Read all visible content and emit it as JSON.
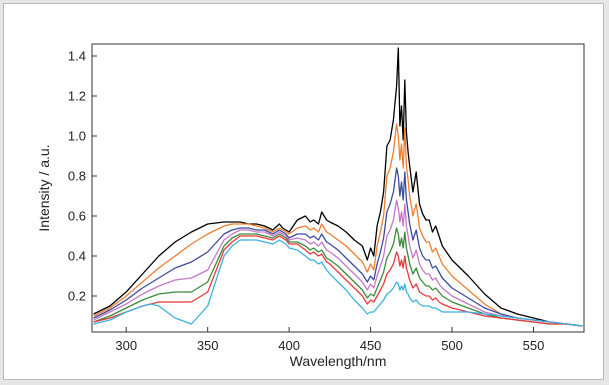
{
  "chart_data": {
    "type": "line",
    "title": "",
    "xlabel": "Wavelength/nm",
    "ylabel": "Intensity / a.u.",
    "xlim": [
      279,
      581
    ],
    "ylim": [
      0.02,
      1.46
    ],
    "xticks": [
      300,
      350,
      400,
      450,
      500,
      550
    ],
    "yticks": [
      0.2,
      0.4,
      0.6,
      0.8,
      1.0,
      1.2,
      1.4
    ],
    "ytick_labels": [
      "0.2",
      "0.4",
      "0.6",
      "0.8",
      "1.0",
      "1.2",
      "1.4"
    ],
    "legend": "none",
    "grid": false,
    "series": [
      {
        "color": "#000000",
        "x": [
          280,
          290,
          300,
          310,
          320,
          330,
          340,
          350,
          360,
          365,
          370,
          375,
          380,
          385,
          390,
          394,
          396,
          398,
          400,
          405,
          410,
          413,
          415,
          418,
          420,
          423,
          425,
          430,
          435,
          440,
          445,
          448,
          450,
          452,
          454,
          456,
          458,
          460,
          462,
          464,
          466,
          467,
          468,
          469,
          470,
          471,
          472,
          473,
          474,
          476,
          478,
          480,
          482,
          484,
          486,
          488,
          490,
          492,
          494,
          500,
          510,
          520,
          530,
          540,
          550,
          560,
          570,
          580
        ],
        "y": [
          0.11,
          0.15,
          0.22,
          0.31,
          0.4,
          0.47,
          0.52,
          0.56,
          0.57,
          0.57,
          0.57,
          0.56,
          0.56,
          0.55,
          0.53,
          0.56,
          0.54,
          0.53,
          0.52,
          0.58,
          0.6,
          0.57,
          0.58,
          0.56,
          0.62,
          0.58,
          0.57,
          0.55,
          0.52,
          0.48,
          0.45,
          0.38,
          0.44,
          0.4,
          0.55,
          0.62,
          0.72,
          0.95,
          0.98,
          1.08,
          1.25,
          1.44,
          1.05,
          1.15,
          0.98,
          1.28,
          1.02,
          0.92,
          0.85,
          0.72,
          0.82,
          0.66,
          0.61,
          0.58,
          0.58,
          0.52,
          0.55,
          0.5,
          0.45,
          0.38,
          0.3,
          0.21,
          0.14,
          0.11,
          0.09,
          0.07,
          0.06,
          0.05
        ]
      },
      {
        "color": "#f07d2e",
        "x": [
          280,
          290,
          300,
          310,
          320,
          330,
          340,
          350,
          360,
          365,
          370,
          375,
          380,
          385,
          390,
          394,
          396,
          398,
          400,
          405,
          410,
          413,
          415,
          418,
          420,
          423,
          425,
          430,
          435,
          440,
          445,
          448,
          450,
          452,
          454,
          456,
          458,
          460,
          462,
          464,
          466,
          467,
          468,
          469,
          470,
          471,
          472,
          473,
          474,
          476,
          478,
          480,
          482,
          484,
          486,
          488,
          490,
          492,
          494,
          500,
          510,
          520,
          530,
          540,
          550,
          560,
          570,
          580
        ],
        "y": [
          0.1,
          0.14,
          0.2,
          0.27,
          0.34,
          0.4,
          0.46,
          0.51,
          0.55,
          0.56,
          0.56,
          0.56,
          0.55,
          0.54,
          0.52,
          0.54,
          0.53,
          0.52,
          0.51,
          0.54,
          0.55,
          0.53,
          0.54,
          0.52,
          0.56,
          0.52,
          0.51,
          0.48,
          0.45,
          0.41,
          0.37,
          0.32,
          0.36,
          0.33,
          0.45,
          0.52,
          0.6,
          0.8,
          0.84,
          0.92,
          1.06,
          1.0,
          0.88,
          0.96,
          0.84,
          1.04,
          0.85,
          0.78,
          0.7,
          0.6,
          0.66,
          0.54,
          0.5,
          0.47,
          0.47,
          0.42,
          0.44,
          0.4,
          0.36,
          0.3,
          0.23,
          0.16,
          0.11,
          0.09,
          0.08,
          0.07,
          0.06,
          0.05
        ]
      },
      {
        "color": "#3c4b9e",
        "x": [
          280,
          290,
          300,
          310,
          320,
          330,
          340,
          350,
          360,
          365,
          370,
          375,
          380,
          385,
          390,
          394,
          396,
          398,
          400,
          405,
          410,
          413,
          415,
          418,
          420,
          423,
          425,
          430,
          435,
          440,
          445,
          448,
          450,
          452,
          454,
          456,
          458,
          460,
          462,
          464,
          466,
          467,
          468,
          469,
          470,
          471,
          472,
          473,
          474,
          476,
          478,
          480,
          482,
          484,
          486,
          488,
          490,
          492,
          494,
          500,
          510,
          520,
          530,
          540,
          550,
          560,
          570,
          580
        ],
        "y": [
          0.09,
          0.13,
          0.18,
          0.24,
          0.29,
          0.34,
          0.37,
          0.42,
          0.51,
          0.53,
          0.54,
          0.54,
          0.53,
          0.53,
          0.51,
          0.53,
          0.52,
          0.51,
          0.49,
          0.51,
          0.51,
          0.49,
          0.5,
          0.48,
          0.51,
          0.47,
          0.46,
          0.43,
          0.39,
          0.35,
          0.31,
          0.27,
          0.3,
          0.28,
          0.36,
          0.42,
          0.49,
          0.62,
          0.66,
          0.72,
          0.84,
          0.8,
          0.7,
          0.77,
          0.68,
          0.82,
          0.68,
          0.62,
          0.56,
          0.48,
          0.53,
          0.44,
          0.4,
          0.38,
          0.38,
          0.34,
          0.35,
          0.32,
          0.29,
          0.24,
          0.19,
          0.14,
          0.11,
          0.09,
          0.08,
          0.07,
          0.06,
          0.05
        ]
      },
      {
        "color": "#c678c8",
        "x": [
          280,
          290,
          300,
          310,
          320,
          330,
          340,
          350,
          360,
          365,
          370,
          375,
          380,
          385,
          390,
          394,
          396,
          398,
          400,
          405,
          410,
          413,
          415,
          418,
          420,
          423,
          425,
          430,
          435,
          440,
          445,
          448,
          450,
          452,
          454,
          456,
          458,
          460,
          462,
          464,
          466,
          467,
          468,
          469,
          470,
          471,
          472,
          473,
          474,
          476,
          478,
          480,
          482,
          484,
          486,
          488,
          490,
          492,
          494,
          500,
          510,
          520,
          530,
          540,
          550,
          560,
          570,
          580
        ],
        "y": [
          0.08,
          0.12,
          0.16,
          0.21,
          0.25,
          0.28,
          0.29,
          0.33,
          0.48,
          0.51,
          0.53,
          0.53,
          0.52,
          0.52,
          0.5,
          0.52,
          0.51,
          0.5,
          0.48,
          0.49,
          0.48,
          0.46,
          0.47,
          0.45,
          0.47,
          0.43,
          0.42,
          0.39,
          0.35,
          0.31,
          0.27,
          0.23,
          0.26,
          0.24,
          0.3,
          0.35,
          0.4,
          0.5,
          0.53,
          0.58,
          0.68,
          0.64,
          0.57,
          0.62,
          0.55,
          0.66,
          0.55,
          0.5,
          0.45,
          0.39,
          0.43,
          0.36,
          0.33,
          0.31,
          0.31,
          0.28,
          0.29,
          0.26,
          0.24,
          0.2,
          0.16,
          0.12,
          0.1,
          0.09,
          0.08,
          0.07,
          0.06,
          0.05
        ]
      },
      {
        "color": "#3a8a3a",
        "x": [
          280,
          290,
          300,
          310,
          320,
          330,
          340,
          350,
          360,
          365,
          370,
          375,
          380,
          385,
          390,
          394,
          396,
          398,
          400,
          405,
          410,
          413,
          415,
          418,
          420,
          423,
          425,
          430,
          435,
          440,
          445,
          448,
          450,
          452,
          454,
          456,
          458,
          460,
          462,
          464,
          466,
          467,
          468,
          469,
          470,
          471,
          472,
          473,
          474,
          476,
          478,
          480,
          482,
          484,
          486,
          488,
          490,
          492,
          494,
          500,
          510,
          520,
          530,
          540,
          550,
          560,
          570,
          580
        ],
        "y": [
          0.07,
          0.1,
          0.14,
          0.18,
          0.21,
          0.22,
          0.22,
          0.27,
          0.45,
          0.49,
          0.51,
          0.51,
          0.51,
          0.5,
          0.49,
          0.51,
          0.5,
          0.49,
          0.47,
          0.47,
          0.45,
          0.43,
          0.44,
          0.42,
          0.43,
          0.39,
          0.38,
          0.35,
          0.31,
          0.27,
          0.23,
          0.19,
          0.21,
          0.2,
          0.24,
          0.28,
          0.32,
          0.39,
          0.42,
          0.46,
          0.54,
          0.51,
          0.45,
          0.49,
          0.44,
          0.52,
          0.44,
          0.4,
          0.36,
          0.31,
          0.34,
          0.29,
          0.27,
          0.25,
          0.25,
          0.23,
          0.24,
          0.22,
          0.2,
          0.17,
          0.14,
          0.11,
          0.09,
          0.08,
          0.07,
          0.06,
          0.06,
          0.05
        ]
      },
      {
        "color": "#e8383a",
        "x": [
          280,
          290,
          300,
          310,
          320,
          330,
          340,
          350,
          360,
          365,
          370,
          375,
          380,
          385,
          390,
          394,
          396,
          398,
          400,
          405,
          410,
          413,
          415,
          418,
          420,
          423,
          425,
          430,
          435,
          440,
          445,
          448,
          450,
          452,
          454,
          456,
          458,
          460,
          462,
          464,
          466,
          467,
          468,
          469,
          470,
          471,
          472,
          473,
          474,
          476,
          478,
          480,
          482,
          484,
          486,
          488,
          490,
          492,
          494,
          500,
          510,
          520,
          530,
          540,
          550,
          560,
          570,
          580
        ],
        "y": [
          0.07,
          0.09,
          0.12,
          0.15,
          0.17,
          0.17,
          0.17,
          0.22,
          0.43,
          0.47,
          0.5,
          0.5,
          0.5,
          0.49,
          0.48,
          0.5,
          0.49,
          0.48,
          0.46,
          0.46,
          0.43,
          0.41,
          0.42,
          0.4,
          0.41,
          0.37,
          0.36,
          0.32,
          0.28,
          0.24,
          0.2,
          0.16,
          0.18,
          0.17,
          0.2,
          0.23,
          0.26,
          0.31,
          0.33,
          0.36,
          0.42,
          0.4,
          0.35,
          0.38,
          0.34,
          0.4,
          0.34,
          0.31,
          0.28,
          0.24,
          0.26,
          0.22,
          0.21,
          0.2,
          0.2,
          0.18,
          0.19,
          0.17,
          0.16,
          0.14,
          0.12,
          0.1,
          0.09,
          0.08,
          0.07,
          0.06,
          0.06,
          0.05
        ]
      },
      {
        "color": "#3ab0e2",
        "x": [
          280,
          290,
          300,
          310,
          315,
          320,
          330,
          340,
          350,
          360,
          365,
          370,
          375,
          380,
          385,
          390,
          394,
          396,
          398,
          400,
          405,
          410,
          413,
          415,
          418,
          420,
          423,
          425,
          430,
          435,
          440,
          445,
          448,
          450,
          452,
          454,
          456,
          458,
          460,
          462,
          464,
          466,
          467,
          468,
          469,
          470,
          471,
          472,
          473,
          474,
          476,
          478,
          480,
          482,
          484,
          486,
          488,
          490,
          492,
          494,
          500,
          510,
          520,
          530,
          540,
          550,
          560,
          570,
          580
        ],
        "y": [
          0.06,
          0.08,
          0.12,
          0.15,
          0.16,
          0.15,
          0.09,
          0.06,
          0.15,
          0.4,
          0.45,
          0.48,
          0.48,
          0.48,
          0.47,
          0.46,
          0.48,
          0.47,
          0.46,
          0.44,
          0.43,
          0.4,
          0.38,
          0.38,
          0.36,
          0.37,
          0.33,
          0.31,
          0.27,
          0.23,
          0.18,
          0.14,
          0.11,
          0.12,
          0.12,
          0.14,
          0.16,
          0.18,
          0.21,
          0.22,
          0.24,
          0.27,
          0.26,
          0.23,
          0.25,
          0.23,
          0.26,
          0.22,
          0.21,
          0.19,
          0.17,
          0.18,
          0.16,
          0.15,
          0.15,
          0.15,
          0.14,
          0.14,
          0.13,
          0.12,
          0.12,
          0.12,
          0.11,
          0.1,
          0.09,
          0.08,
          0.07,
          0.06,
          0.05
        ]
      }
    ]
  }
}
